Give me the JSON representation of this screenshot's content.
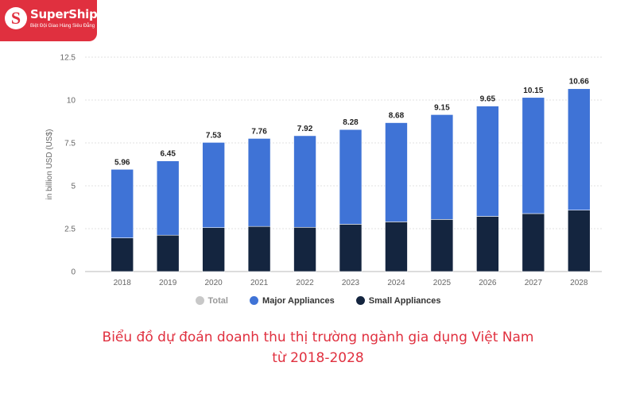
{
  "brand": {
    "name": "SuperShip",
    "tagline": "Biệt Đội Giao Hàng Siêu Đẳng",
    "color": "#e0303f"
  },
  "caption": {
    "line1": "Biểu đồ dự đoán doanh thu thị trường ngành gia dụng Việt Nam",
    "line2": "từ 2018-2028"
  },
  "chart_data": {
    "type": "bar",
    "stacked": true,
    "categories": [
      "2018",
      "2019",
      "2020",
      "2021",
      "2022",
      "2023",
      "2024",
      "2025",
      "2026",
      "2027",
      "2028"
    ],
    "totals": [
      5.96,
      6.45,
      7.53,
      7.76,
      7.92,
      8.28,
      8.68,
      9.15,
      9.65,
      10.15,
      10.66
    ],
    "series": [
      {
        "name": "Small Appliances",
        "color": "#14253f",
        "values": [
          1.96,
          2.12,
          2.56,
          2.63,
          2.58,
          2.76,
          2.9,
          3.04,
          3.22,
          3.38,
          3.58
        ]
      },
      {
        "name": "Major Appliances",
        "color": "#3f73d6",
        "values": [
          4.0,
          4.33,
          4.97,
          5.13,
          5.34,
          5.52,
          5.78,
          6.11,
          6.43,
          6.77,
          7.08
        ]
      }
    ],
    "ylabel": "in billion USD (US$)",
    "ylim": [
      0,
      12.5
    ],
    "yticks": [
      "0",
      "2.5",
      "5",
      "7.5",
      "10",
      "12.5"
    ],
    "grid": true,
    "legend": {
      "position": "bottom",
      "items": [
        {
          "label": "Total",
          "color": "#c8c8c8"
        },
        {
          "label": "Major Appliances",
          "color": "#3f73d6"
        },
        {
          "label": "Small Appliances",
          "color": "#14253f"
        }
      ]
    }
  }
}
